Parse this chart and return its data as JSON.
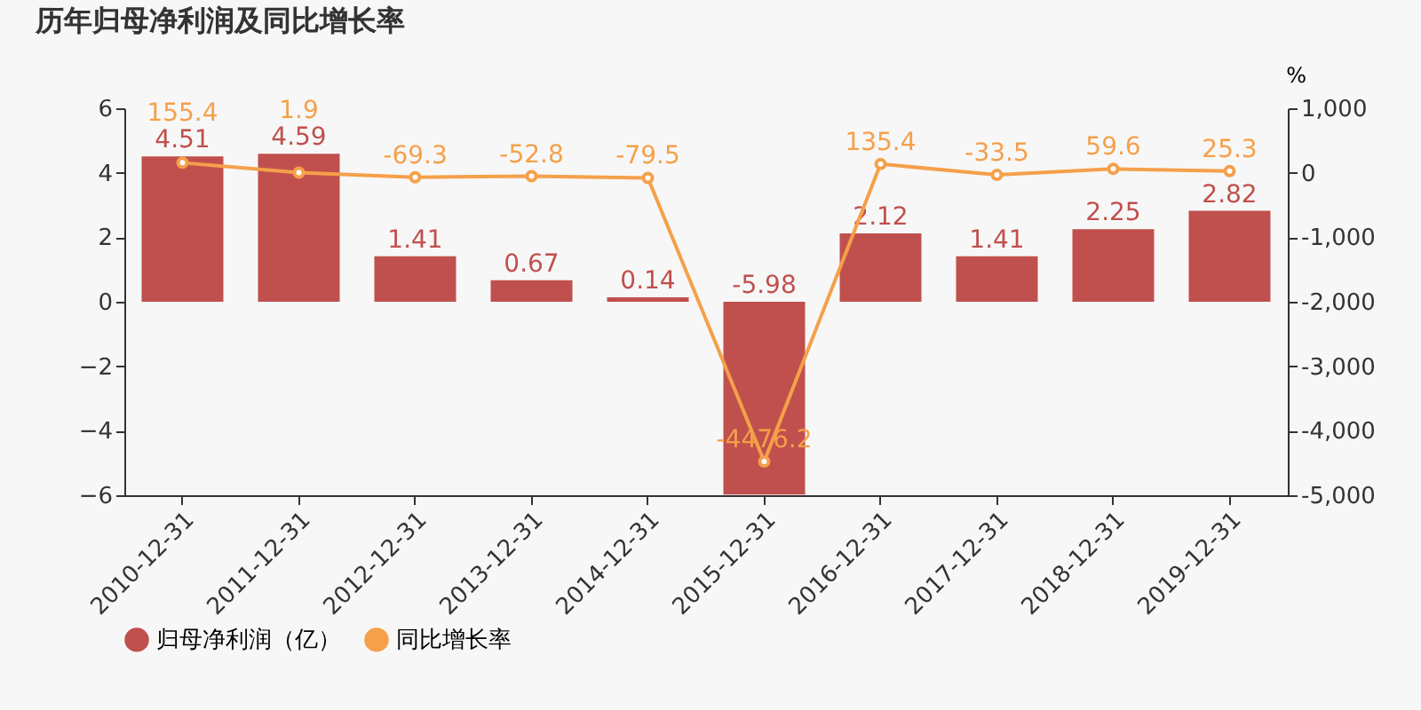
{
  "chart_data": {
    "type": "bar",
    "title": "历年归母净利润及同比增长率",
    "y2label": "%",
    "categories": [
      "2010-12-31",
      "2011-12-31",
      "2012-12-31",
      "2013-12-31",
      "2014-12-31",
      "2015-12-31",
      "2016-12-31",
      "2017-12-31",
      "2018-12-31",
      "2019-12-31"
    ],
    "series": [
      {
        "name": "归母净利润（亿）",
        "color": "#c0504d",
        "values": [
          4.51,
          4.59,
          1.41,
          0.67,
          0.14,
          -5.98,
          2.12,
          1.41,
          2.25,
          2.82
        ]
      },
      {
        "name": "同比增长率",
        "type": "line",
        "axis": "y2",
        "color": "#f5a04a",
        "values": [
          155.4,
          1.9,
          -69.3,
          -52.8,
          -79.5,
          -4476.2,
          135.4,
          -33.5,
          59.6,
          25.3
        ]
      }
    ],
    "ylim": [
      -6,
      6
    ],
    "yticks": [
      -6,
      -4,
      -2,
      0,
      2,
      4,
      6
    ],
    "y2lim": [
      -5000,
      1000
    ],
    "y2ticks": [
      {
        "value": -5000,
        "label": "-5,000"
      },
      {
        "value": -4000,
        "label": "-4,000"
      },
      {
        "value": -3000,
        "label": "-3,000"
      },
      {
        "value": -2000,
        "label": "-2,000"
      },
      {
        "value": -1000,
        "label": "-1,000"
      },
      0,
      {
        "value": 1000,
        "label": "1,000"
      }
    ],
    "data_labels": true,
    "grid": false,
    "legend": "bottom",
    "marker": "circle",
    "line_style": "solid"
  }
}
